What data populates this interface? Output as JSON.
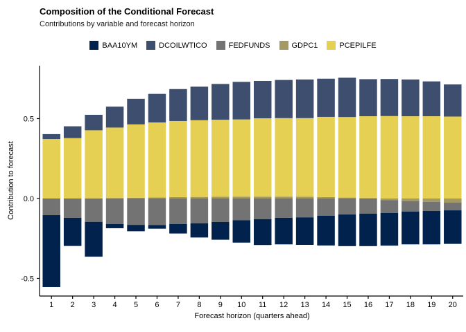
{
  "header": {
    "title": "Composition of the Conditional Forecast",
    "subtitle": "Contributions by variable and forecast horizon"
  },
  "chart_data": {
    "type": "bar",
    "stacked": true,
    "title": "Composition of the Conditional Forecast",
    "subtitle": "Contributions by variable and forecast horizon",
    "xlabel": "Forecast horizon (quarters ahead)",
    "ylabel": "Contribution to forecast",
    "x": [
      1,
      2,
      3,
      4,
      5,
      6,
      7,
      8,
      9,
      10,
      11,
      12,
      13,
      14,
      15,
      16,
      17,
      18,
      19,
      20
    ],
    "series": [
      {
        "name": "BAA10YM",
        "color": "#00224D",
        "values": [
          -0.45,
          -0.176,
          -0.218,
          -0.026,
          -0.04,
          -0.023,
          -0.059,
          -0.089,
          -0.111,
          -0.14,
          -0.162,
          -0.166,
          -0.172,
          -0.186,
          -0.198,
          -0.203,
          -0.205,
          -0.205,
          -0.209,
          -0.21
        ]
      },
      {
        "name": "DCOILWTICO",
        "color": "#3E4E6E",
        "values": [
          0.031,
          0.074,
          0.097,
          0.131,
          0.16,
          0.179,
          0.2,
          0.21,
          0.224,
          0.235,
          0.234,
          0.239,
          0.242,
          0.239,
          0.246,
          0.232,
          0.232,
          0.23,
          0.218,
          0.201
        ]
      },
      {
        "name": "FEDFUNDS",
        "color": "#737373",
        "values": [
          -0.104,
          -0.121,
          -0.146,
          -0.16,
          -0.165,
          -0.166,
          -0.16,
          -0.155,
          -0.147,
          -0.136,
          -0.129,
          -0.121,
          -0.118,
          -0.108,
          -0.1,
          -0.095,
          -0.08,
          -0.066,
          -0.057,
          -0.048
        ]
      },
      {
        "name": "GDPC1",
        "color": "#A39A63",
        "values": [
          0.0,
          0.0,
          0.001,
          0.003,
          0.005,
          0.007,
          0.009,
          0.01,
          0.011,
          0.012,
          0.012,
          0.012,
          0.011,
          0.009,
          0.006,
          0.002,
          -0.01,
          -0.016,
          -0.021,
          -0.026
        ]
      },
      {
        "name": "PCEPILFE",
        "color": "#E5D054",
        "values": [
          0.372,
          0.378,
          0.426,
          0.441,
          0.459,
          0.469,
          0.476,
          0.48,
          0.482,
          0.483,
          0.49,
          0.491,
          0.492,
          0.502,
          0.504,
          0.513,
          0.516,
          0.515,
          0.515,
          0.513
        ]
      }
    ],
    "stack_order_from_zero": [
      "GDPC1",
      "PCEPILFE",
      "DCOILWTICO",
      "FEDFUNDS",
      "BAA10YM"
    ],
    "legend_order": [
      "BAA10YM",
      "DCOILWTICO",
      "FEDFUNDS",
      "GDPC1",
      "PCEPILFE"
    ],
    "yticks": [
      {
        "value": 0.5,
        "label": "0.5"
      },
      {
        "value": 0.0,
        "label": "0.0"
      },
      {
        "value": -0.5,
        "label": "-0.5"
      }
    ],
    "ylim": [
      -0.61,
      0.83
    ],
    "grid": false,
    "legend_position": "top",
    "axis_color": "#000000",
    "background_color": "#FFFFFF"
  }
}
